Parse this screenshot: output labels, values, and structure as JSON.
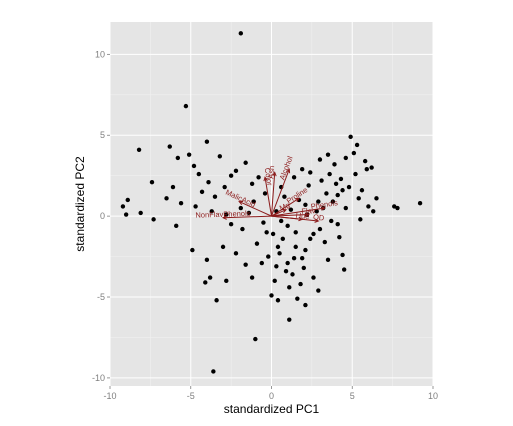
{
  "chart_data": {
    "type": "scatter",
    "title": "",
    "xlabel": "standardized PC1",
    "ylabel": "standardized PC2",
    "xlim": [
      -10,
      10
    ],
    "ylim": [
      -10.5,
      12
    ],
    "x_ticks": [
      -10,
      -5,
      0,
      5,
      10
    ],
    "y_ticks": [
      -10,
      -5,
      0,
      5,
      10
    ],
    "x_tick_labels": [
      "-10",
      "-5",
      "0",
      "5",
      "10"
    ],
    "y_tick_labels": [
      "-10",
      "-5",
      "0",
      "5",
      "10"
    ],
    "grid": true,
    "background_color": "#e5e5e5",
    "point_color": "#000000",
    "arrow_color": "#8b1a1a",
    "points": [
      {
        "x": -1.9,
        "y": 11.3
      },
      {
        "x": -5.3,
        "y": 6.8
      },
      {
        "x": -8.2,
        "y": 4.1
      },
      {
        "x": -6.3,
        "y": 4.3
      },
      {
        "x": -5.1,
        "y": 3.8
      },
      {
        "x": -4.0,
        "y": 4.6
      },
      {
        "x": -3.2,
        "y": 3.7
      },
      {
        "x": -5.8,
        "y": 3.6
      },
      {
        "x": -4.8,
        "y": 3.1
      },
      {
        "x": -4.5,
        "y": 2.6
      },
      {
        "x": -3.9,
        "y": 2.1
      },
      {
        "x": -2.5,
        "y": 2.5
      },
      {
        "x": -2.2,
        "y": 2.8
      },
      {
        "x": -7.4,
        "y": 2.1
      },
      {
        "x": -6.1,
        "y": 1.8
      },
      {
        "x": -4.3,
        "y": 1.5
      },
      {
        "x": -3.5,
        "y": 1.2
      },
      {
        "x": -2.9,
        "y": 1.8
      },
      {
        "x": -1.6,
        "y": 3.3
      },
      {
        "x": -1.2,
        "y": 2.0
      },
      {
        "x": -8.9,
        "y": 1.0
      },
      {
        "x": -9.2,
        "y": 0.6
      },
      {
        "x": -9.0,
        "y": 0.1
      },
      {
        "x": -8.1,
        "y": 0.2
      },
      {
        "x": -7.3,
        "y": -0.2
      },
      {
        "x": -6.5,
        "y": 1.1
      },
      {
        "x": -5.6,
        "y": 0.8
      },
      {
        "x": -4.7,
        "y": 0.6
      },
      {
        "x": -3.7,
        "y": 0.3
      },
      {
        "x": -2.8,
        "y": 0.1
      },
      {
        "x": -1.9,
        "y": 0.5
      },
      {
        "x": -1.1,
        "y": 0.9
      },
      {
        "x": -0.4,
        "y": 1.4
      },
      {
        "x": -5.9,
        "y": -0.6
      },
      {
        "x": -4.9,
        "y": -2.1
      },
      {
        "x": -4.0,
        "y": -2.7
      },
      {
        "x": -3.0,
        "y": -1.9
      },
      {
        "x": -2.2,
        "y": -2.3
      },
      {
        "x": -1.6,
        "y": -3.0
      },
      {
        "x": -3.8,
        "y": -3.8
      },
      {
        "x": -4.1,
        "y": -4.1
      },
      {
        "x": -2.8,
        "y": -4.0
      },
      {
        "x": -1.2,
        "y": -3.8
      },
      {
        "x": -3.4,
        "y": -5.2
      },
      {
        "x": -1.0,
        "y": -7.6
      },
      {
        "x": -3.6,
        "y": -9.6
      },
      {
        "x": 0.1,
        "y": -1.1
      },
      {
        "x": 0.4,
        "y": -1.9
      },
      {
        "x": -0.2,
        "y": -2.5
      },
      {
        "x": 0.3,
        "y": -3.1
      },
      {
        "x": 0.5,
        "y": -2.3
      },
      {
        "x": 1.0,
        "y": -2.9
      },
      {
        "x": 1.3,
        "y": -3.6
      },
      {
        "x": 0.2,
        "y": -4.0
      },
      {
        "x": 1.1,
        "y": -4.4
      },
      {
        "x": 1.8,
        "y": -4.2
      },
      {
        "x": 1.6,
        "y": -5.1
      },
      {
        "x": 2.1,
        "y": -5.5
      },
      {
        "x": 0.4,
        "y": -5.2
      },
      {
        "x": 2.0,
        "y": -3.2
      },
      {
        "x": 2.6,
        "y": -3.8
      },
      {
        "x": 1.1,
        "y": -6.4
      },
      {
        "x": 1.9,
        "y": -2.6
      },
      {
        "x": 0.7,
        "y": -1.4
      },
      {
        "x": 1.5,
        "y": -1.0
      },
      {
        "x": 2.4,
        "y": -1.4
      },
      {
        "x": 1.2,
        "y": 0.4
      },
      {
        "x": 2.1,
        "y": 0.7
      },
      {
        "x": 2.9,
        "y": 0.9
      },
      {
        "x": 3.4,
        "y": 1.4
      },
      {
        "x": 4.1,
        "y": 1.3
      },
      {
        "x": 4.8,
        "y": 1.8
      },
      {
        "x": 5.6,
        "y": 1.6
      },
      {
        "x": 4.3,
        "y": 2.3
      },
      {
        "x": 3.1,
        "y": 2.2
      },
      {
        "x": 2.3,
        "y": 1.9
      },
      {
        "x": 3.6,
        "y": 2.6
      },
      {
        "x": 3.9,
        "y": 3.2
      },
      {
        "x": 4.6,
        "y": 3.6
      },
      {
        "x": 5.1,
        "y": 3.9
      },
      {
        "x": 5.8,
        "y": 3.4
      },
      {
        "x": 5.3,
        "y": 4.4
      },
      {
        "x": 4.9,
        "y": 4.9
      },
      {
        "x": 6.2,
        "y": 3.0
      },
      {
        "x": 5.9,
        "y": 2.9
      },
      {
        "x": 6.0,
        "y": 0.6
      },
      {
        "x": 6.3,
        "y": 0.3
      },
      {
        "x": 5.5,
        "y": -0.2
      },
      {
        "x": 7.6,
        "y": 0.6
      },
      {
        "x": 7.8,
        "y": 0.5
      },
      {
        "x": 9.2,
        "y": 0.8
      },
      {
        "x": 6.5,
        "y": 1.1
      },
      {
        "x": 3.7,
        "y": -0.3
      },
      {
        "x": 3.0,
        "y": -0.8
      },
      {
        "x": 3.3,
        "y": -1.6
      },
      {
        "x": 4.2,
        "y": -1.3
      },
      {
        "x": 4.4,
        "y": -2.4
      },
      {
        "x": 3.5,
        "y": -2.7
      },
      {
        "x": 4.5,
        "y": -3.3
      },
      {
        "x": 2.6,
        "y": -1.1
      },
      {
        "x": 2.2,
        "y": 0.1
      },
      {
        "x": 1.7,
        "y": 1.0
      },
      {
        "x": 0.8,
        "y": 1.2
      },
      {
        "x": 0.3,
        "y": 0.3
      },
      {
        "x": -0.5,
        "y": -0.4
      },
      {
        "x": 1.0,
        "y": -0.6
      },
      {
        "x": 2.8,
        "y": 0.3
      },
      {
        "x": 3.2,
        "y": 0.5
      },
      {
        "x": 3.8,
        "y": 0.9
      },
      {
        "x": 4.6,
        "y": 0.5
      },
      {
        "x": 4.1,
        "y": -0.5
      },
      {
        "x": 2.4,
        "y": 2.7
      },
      {
        "x": 3.0,
        "y": 3.5
      },
      {
        "x": 1.4,
        "y": 2.4
      },
      {
        "x": -0.9,
        "y": -1.7
      },
      {
        "x": -0.6,
        "y": -2.9
      },
      {
        "x": 0.0,
        "y": -4.9
      },
      {
        "x": 2.9,
        "y": -4.6
      },
      {
        "x": -1.8,
        "y": -0.8
      },
      {
        "x": -2.5,
        "y": -0.5
      },
      {
        "x": -1.4,
        "y": 0.2
      },
      {
        "x": -0.8,
        "y": 2.4
      },
      {
        "x": 0.6,
        "y": 1.8
      },
      {
        "x": 1.9,
        "y": 2.9
      },
      {
        "x": 3.5,
        "y": 3.8
      },
      {
        "x": 4.0,
        "y": 2.0
      },
      {
        "x": 5.2,
        "y": 2.6
      },
      {
        "x": 4.4,
        "y": 1.6
      },
      {
        "x": 5.4,
        "y": 1.1
      },
      {
        "x": 1.5,
        "y": -1.9
      },
      {
        "x": 2.1,
        "y": -2.1
      },
      {
        "x": 0.9,
        "y": -3.4
      },
      {
        "x": 1.4,
        "y": -2.6
      },
      {
        "x": -0.3,
        "y": -1.0
      },
      {
        "x": 0.6,
        "y": -0.3
      }
    ],
    "arrows": [
      {
        "label": "Alcohol",
        "x": 1.1,
        "y": 2.9
      },
      {
        "label": "Ash",
        "x": 0.2,
        "y": 2.7
      },
      {
        "label": "Color",
        "x": -0.4,
        "y": 2.4
      },
      {
        "label": "MalicAcid",
        "x": -2.0,
        "y": 0.9
      },
      {
        "label": "NonFlavPhenols",
        "x": -3.0,
        "y": -0.1
      },
      {
        "label": "Proline",
        "x": 1.7,
        "y": 1.1
      },
      {
        "label": "Phenols",
        "x": 3.3,
        "y": 0.5
      },
      {
        "label": "OD",
        "x": 2.9,
        "y": -0.3
      },
      {
        "label": "Flav",
        "x": 2.3,
        "y": 0.1
      },
      {
        "label": "Hue",
        "x": 1.9,
        "y": -0.2
      },
      {
        "label": "Mg",
        "x": 0.9,
        "y": 0.4
      }
    ]
  }
}
